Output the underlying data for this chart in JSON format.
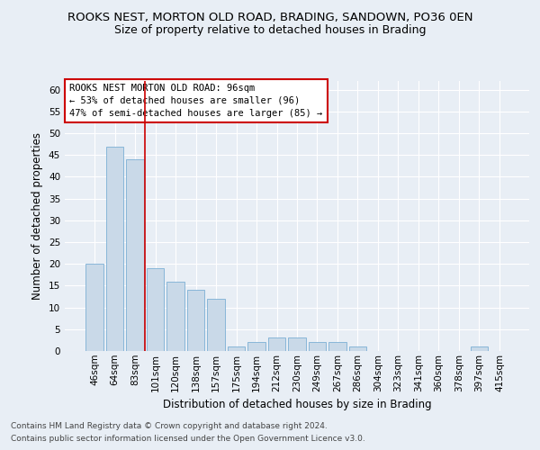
{
  "title": "ROOKS NEST, MORTON OLD ROAD, BRADING, SANDOWN, PO36 0EN",
  "subtitle": "Size of property relative to detached houses in Brading",
  "xlabel": "Distribution of detached houses by size in Brading",
  "ylabel": "Number of detached properties",
  "categories": [
    "46sqm",
    "64sqm",
    "83sqm",
    "101sqm",
    "120sqm",
    "138sqm",
    "157sqm",
    "175sqm",
    "194sqm",
    "212sqm",
    "230sqm",
    "249sqm",
    "267sqm",
    "286sqm",
    "304sqm",
    "323sqm",
    "341sqm",
    "360sqm",
    "378sqm",
    "397sqm",
    "415sqm"
  ],
  "values": [
    20,
    47,
    44,
    19,
    16,
    14,
    12,
    1,
    2,
    3,
    3,
    2,
    2,
    1,
    0,
    0,
    0,
    0,
    0,
    1,
    0
  ],
  "bar_color": "#c9d9e8",
  "bar_edge_color": "#7bafd4",
  "vline_x_index": 2.5,
  "vline_color": "#cc0000",
  "ylim": [
    0,
    62
  ],
  "yticks": [
    0,
    5,
    10,
    15,
    20,
    25,
    30,
    35,
    40,
    45,
    50,
    55,
    60
  ],
  "annotation_text": "ROOKS NEST MORTON OLD ROAD: 96sqm\n← 53% of detached houses are smaller (96)\n47% of semi-detached houses are larger (85) →",
  "annotation_box_color": "#ffffff",
  "annotation_box_edge_color": "#cc0000",
  "footer_line1": "Contains HM Land Registry data © Crown copyright and database right 2024.",
  "footer_line2": "Contains public sector information licensed under the Open Government Licence v3.0.",
  "background_color": "#e8eef5",
  "plot_background_color": "#e8eef5",
  "title_fontsize": 9.5,
  "subtitle_fontsize": 9,
  "axis_label_fontsize": 8.5,
  "tick_fontsize": 7.5,
  "annotation_fontsize": 7.5,
  "footer_fontsize": 6.5
}
